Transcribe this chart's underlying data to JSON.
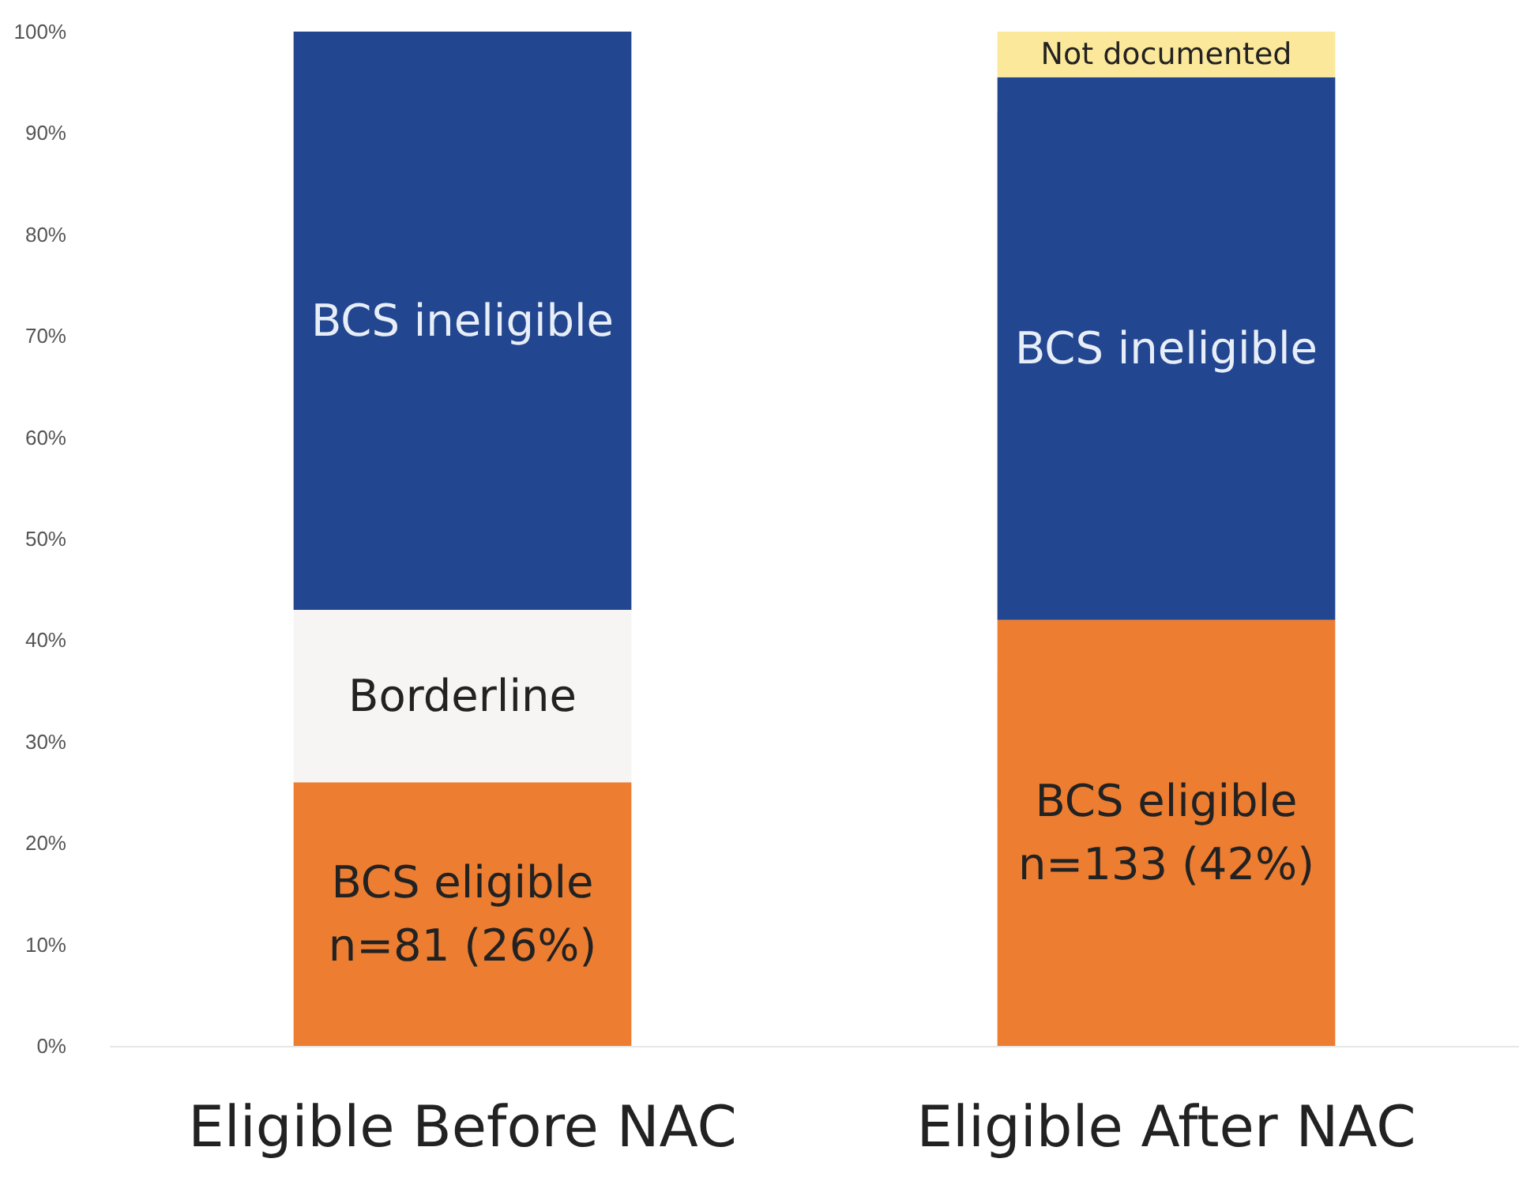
{
  "chart_data": {
    "type": "bar",
    "stacked": true,
    "categories": [
      "Eligible Before NAC",
      "Eligible After NAC"
    ],
    "series": [
      {
        "name": "BCS eligible",
        "color": "#ed7d31",
        "values": [
          26,
          42
        ],
        "value_labels": [
          "n=81 (26%)",
          "n=133 (42%)"
        ]
      },
      {
        "name": "Borderline",
        "color": "#f7f5f3",
        "values": [
          17,
          0
        ]
      },
      {
        "name": "BCS ineligible",
        "color": "#22468f",
        "values": [
          57,
          53.5
        ]
      },
      {
        "name": "Not documented",
        "color": "#fbe89a",
        "values": [
          0,
          4.5
        ]
      }
    ],
    "ylim": [
      0,
      100
    ],
    "yticks": [
      {
        "value": 0,
        "label": "0%"
      },
      {
        "value": 10,
        "label": "10%"
      },
      {
        "value": 20,
        "label": "20%"
      },
      {
        "value": 30,
        "label": "30%"
      },
      {
        "value": 40,
        "label": "40%"
      },
      {
        "value": 50,
        "label": "50%"
      },
      {
        "value": 60,
        "label": "60%"
      },
      {
        "value": 70,
        "label": "70%"
      },
      {
        "value": 80,
        "label": "80%"
      },
      {
        "value": 90,
        "label": "90%"
      },
      {
        "value": 100,
        "label": "100%"
      }
    ],
    "grid": false,
    "legend": false
  }
}
